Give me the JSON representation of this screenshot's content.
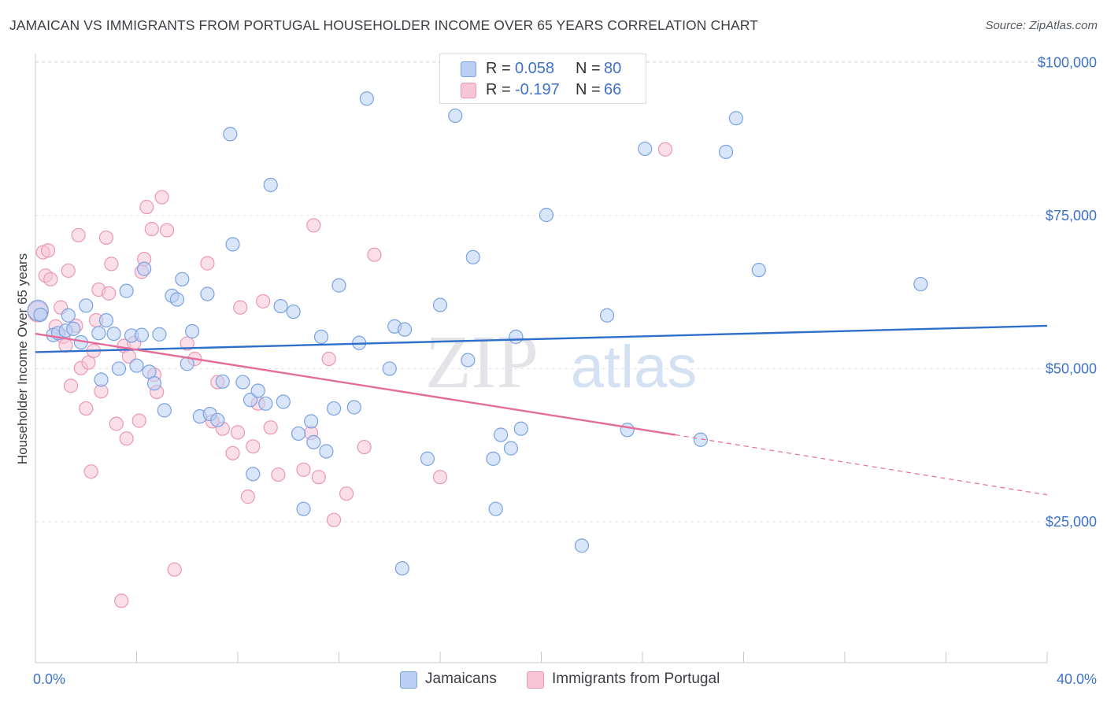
{
  "title": "JAMAICAN VS IMMIGRANTS FROM PORTUGAL HOUSEHOLDER INCOME OVER 65 YEARS CORRELATION CHART",
  "source": "Source: ZipAtlas.com",
  "watermark": {
    "zip": "ZIP",
    "atlas": "atlas"
  },
  "legend_stats": [
    {
      "r_label": "R =",
      "r_value": "0.058",
      "n_label": "N =",
      "n_value": "80"
    },
    {
      "r_label": "R =",
      "r_value": "-0.197",
      "n_label": "N =",
      "n_value": "66"
    }
  ],
  "colors": {
    "jamaicans_fill": "#b9d0f4",
    "jamaicans_stroke": "#7aa2e0",
    "jamaicans_line": "#2f6fcc",
    "portugal_fill": "#f8c5d6",
    "portugal_stroke": "#ea97b4",
    "portugal_line": "#e56b99",
    "axis_text": "#3d72c9",
    "grid": "#dfe3e8"
  },
  "chart_data": {
    "type": "scatter",
    "title": "JAMAICAN VS IMMIGRANTS FROM PORTUGAL HOUSEHOLDER INCOME OVER 65 YEARS CORRELATION CHART",
    "xlabel": "",
    "ylabel": "Householder Income Over 65 years",
    "xlim": [
      0,
      40
    ],
    "ylim": [
      2000,
      103000
    ],
    "x_tick_labels": [
      "0.0%",
      "40.0%"
    ],
    "y_ticks": [
      25000,
      50000,
      75000,
      100000
    ],
    "y_tick_labels": [
      "$25,000",
      "$50,000",
      "$75,000",
      "$100,000"
    ],
    "grid": true,
    "legend_position": "bottom",
    "series": [
      {
        "name": "Jamaicans",
        "points": [
          [
            0.1,
            59500
          ],
          [
            0.2,
            58800
          ],
          [
            0.7,
            55500
          ],
          [
            0.9,
            55800
          ],
          [
            1.2,
            56200
          ],
          [
            1.3,
            58700
          ],
          [
            1.5,
            56500
          ],
          [
            1.8,
            54300
          ],
          [
            2.0,
            60300
          ],
          [
            2.5,
            55800
          ],
          [
            2.6,
            48200
          ],
          [
            2.8,
            57900
          ],
          [
            3.1,
            55700
          ],
          [
            3.3,
            50000
          ],
          [
            3.6,
            62700
          ],
          [
            3.8,
            55400
          ],
          [
            4.0,
            50500
          ],
          [
            4.3,
            66300
          ],
          [
            4.5,
            49500
          ],
          [
            4.7,
            47600
          ],
          [
            4.9,
            55600
          ],
          [
            5.1,
            43200
          ],
          [
            5.4,
            61900
          ],
          [
            5.6,
            61300
          ],
          [
            5.8,
            64600
          ],
          [
            6.0,
            50800
          ],
          [
            6.2,
            56100
          ],
          [
            6.5,
            42200
          ],
          [
            6.8,
            62200
          ],
          [
            6.9,
            42600
          ],
          [
            7.2,
            41600
          ],
          [
            7.4,
            47900
          ],
          [
            7.7,
            88300
          ],
          [
            7.8,
            70300
          ],
          [
            8.2,
            47800
          ],
          [
            8.5,
            44900
          ],
          [
            8.6,
            32800
          ],
          [
            8.8,
            46400
          ],
          [
            9.1,
            44300
          ],
          [
            9.3,
            80000
          ],
          [
            9.7,
            60200
          ],
          [
            9.8,
            44600
          ],
          [
            10.2,
            59300
          ],
          [
            10.4,
            39400
          ],
          [
            10.6,
            27100
          ],
          [
            10.9,
            41400
          ],
          [
            11.0,
            38000
          ],
          [
            11.3,
            55200
          ],
          [
            11.5,
            36500
          ],
          [
            11.8,
            43500
          ],
          [
            12.0,
            63600
          ],
          [
            12.6,
            43700
          ],
          [
            12.8,
            54200
          ],
          [
            13.1,
            94100
          ],
          [
            14.0,
            50000
          ],
          [
            14.2,
            56900
          ],
          [
            14.5,
            17400
          ],
          [
            14.6,
            56400
          ],
          [
            15.5,
            35300
          ],
          [
            16.0,
            60400
          ],
          [
            16.6,
            91300
          ],
          [
            17.1,
            51400
          ],
          [
            17.3,
            68200
          ],
          [
            18.1,
            35300
          ],
          [
            18.2,
            27100
          ],
          [
            18.4,
            39200
          ],
          [
            18.8,
            37000
          ],
          [
            19.0,
            55200
          ],
          [
            19.2,
            40200
          ],
          [
            20.2,
            75100
          ],
          [
            21.6,
            21100
          ],
          [
            22.6,
            58700
          ],
          [
            23.4,
            40000
          ],
          [
            24.1,
            85900
          ],
          [
            26.3,
            38400
          ],
          [
            27.3,
            85400
          ],
          [
            27.7,
            90900
          ],
          [
            28.6,
            66100
          ],
          [
            35.0,
            63800
          ],
          [
            4.2,
            55500
          ]
        ]
      },
      {
        "name": "Immigrants from Portugal",
        "points": [
          [
            0.1,
            59300
          ],
          [
            0.3,
            69000
          ],
          [
            0.4,
            65200
          ],
          [
            0.5,
            69300
          ],
          [
            0.6,
            64600
          ],
          [
            0.8,
            56900
          ],
          [
            1.0,
            60000
          ],
          [
            1.1,
            55200
          ],
          [
            1.2,
            53800
          ],
          [
            1.3,
            66000
          ],
          [
            1.4,
            47200
          ],
          [
            1.6,
            57000
          ],
          [
            1.7,
            71800
          ],
          [
            1.8,
            50100
          ],
          [
            2.0,
            43500
          ],
          [
            2.1,
            51000
          ],
          [
            2.2,
            33200
          ],
          [
            2.3,
            52900
          ],
          [
            2.4,
            57900
          ],
          [
            2.5,
            62900
          ],
          [
            2.6,
            46300
          ],
          [
            2.8,
            71400
          ],
          [
            2.9,
            62300
          ],
          [
            3.0,
            67100
          ],
          [
            3.2,
            41000
          ],
          [
            3.4,
            12100
          ],
          [
            3.5,
            53700
          ],
          [
            3.6,
            38600
          ],
          [
            3.7,
            52000
          ],
          [
            3.9,
            54200
          ],
          [
            4.1,
            41500
          ],
          [
            4.2,
            65800
          ],
          [
            4.3,
            67900
          ],
          [
            4.4,
            76400
          ],
          [
            4.6,
            72800
          ],
          [
            4.7,
            49000
          ],
          [
            4.8,
            46200
          ],
          [
            5.0,
            78000
          ],
          [
            5.2,
            72600
          ],
          [
            5.5,
            17200
          ],
          [
            6.0,
            54100
          ],
          [
            6.3,
            51600
          ],
          [
            6.8,
            67200
          ],
          [
            7.0,
            41400
          ],
          [
            7.2,
            47800
          ],
          [
            7.4,
            40200
          ],
          [
            7.8,
            36200
          ],
          [
            8.0,
            39600
          ],
          [
            8.1,
            60000
          ],
          [
            8.4,
            29100
          ],
          [
            8.6,
            37300
          ],
          [
            8.8,
            44300
          ],
          [
            9.0,
            61000
          ],
          [
            9.3,
            40400
          ],
          [
            9.6,
            32700
          ],
          [
            10.6,
            33500
          ],
          [
            10.9,
            39500
          ],
          [
            11.2,
            32300
          ],
          [
            11.6,
            51600
          ],
          [
            11.8,
            25300
          ],
          [
            11.0,
            73400
          ],
          [
            12.3,
            29600
          ],
          [
            13.0,
            37200
          ],
          [
            13.4,
            68600
          ],
          [
            16.0,
            32300
          ],
          [
            24.9,
            85800
          ]
        ]
      }
    ],
    "trend_lines": [
      {
        "series": "Jamaicans",
        "x0": 0,
        "y0": 52700,
        "x1": 40,
        "y1": 57000,
        "style": "solid"
      },
      {
        "series": "Immigrants from Portugal",
        "x0": 0,
        "y0": 55700,
        "x1": 25.3,
        "y1": 39200,
        "style": "solid"
      },
      {
        "series": "Immigrants from Portugal",
        "x0": 25.3,
        "y0": 39200,
        "x1": 40,
        "y1": 29400,
        "style": "dashed"
      }
    ]
  }
}
